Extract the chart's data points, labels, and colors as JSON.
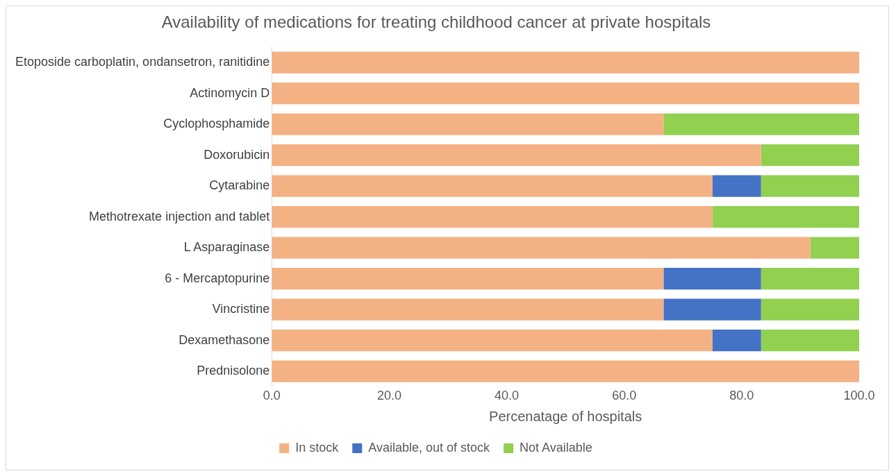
{
  "chart_data": {
    "type": "bar",
    "orientation": "horizontal",
    "stacked": true,
    "title": "Availability of medications for treating childhood cancer at private hospitals",
    "xlabel": "Percenatage of hospitals",
    "categories": [
      "Etoposide carboplatin, ondansetron, ranitidine",
      "Actinomycin D",
      "Cyclophosphamide",
      "Doxorubicin",
      "Cytarabine",
      "Methotrexate injection and tablet",
      "L Asparaginase",
      "6 - Mercaptopurine",
      "Vincristine",
      "Dexamethasone",
      "Prednisolone"
    ],
    "series": [
      {
        "name": "In stock",
        "color": "#f4b183",
        "values": [
          100,
          100,
          66.7,
          83.3,
          75,
          75,
          91.7,
          66.7,
          66.7,
          75,
          100
        ]
      },
      {
        "name": "Available, out of stock",
        "color": "#4472c4",
        "values": [
          0,
          0,
          0,
          0,
          8.3,
          0,
          0,
          16.6,
          16.6,
          8.3,
          0
        ]
      },
      {
        "name": "Not Available",
        "color": "#92d050",
        "values": [
          0,
          0,
          33.3,
          16.7,
          16.7,
          25,
          8.3,
          16.7,
          16.7,
          16.7,
          0
        ]
      }
    ],
    "xlim": [
      0,
      100
    ],
    "xticks": [
      {
        "value": 0,
        "label": "0.0"
      },
      {
        "value": 20,
        "label": "20.0"
      },
      {
        "value": 40,
        "label": "40.0"
      },
      {
        "value": 60,
        "label": "60.0"
      },
      {
        "value": 80,
        "label": "80.0"
      },
      {
        "value": 100,
        "label": "100.0"
      }
    ],
    "grid": false,
    "legend": "bottom"
  }
}
